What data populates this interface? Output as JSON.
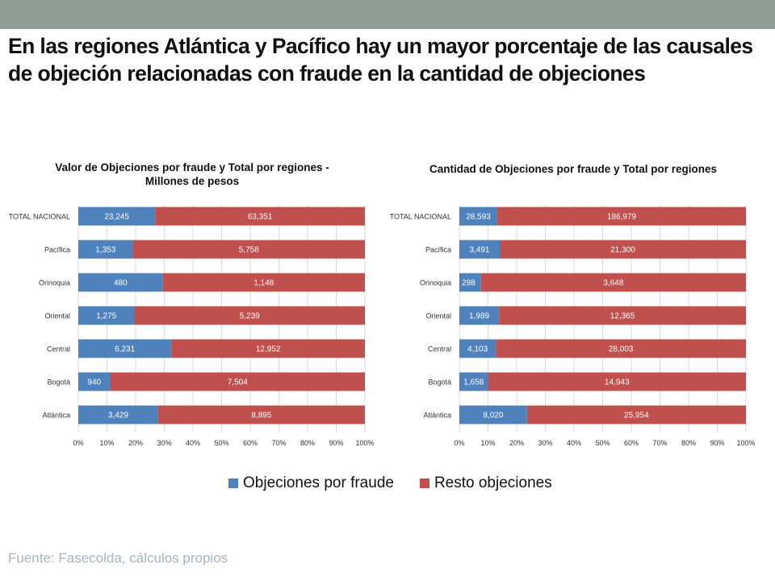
{
  "headline": "En las regiones Atlántica y Pacífico hay un mayor porcentaje de las causales de objeción relacionadas con fraude  en la cantidad de objeciones",
  "source": "Fuente: Fasecolda, cálculos propios",
  "colors": {
    "fraude": "#4f81bd",
    "resto": "#c0504d",
    "band": "#8f9e94"
  },
  "legend": [
    {
      "label": "Objeciones por fraude",
      "color": "#4f81bd"
    },
    {
      "label": "Resto objeciones",
      "color": "#c0504d"
    }
  ],
  "chart_data": [
    {
      "type": "bar",
      "orientation": "horizontal",
      "stacked": "percent",
      "title": "Valor de Objeciones por fraude y Total  por regiones - Millones de pesos",
      "categories": [
        "TOTAL NACIONAL",
        "Pacífica",
        "Orinoquia",
        "Oriental",
        "Central",
        "Bogotá",
        "Atlántica"
      ],
      "series": [
        {
          "name": "Objeciones por fraude",
          "values": [
            23245,
            1353,
            480,
            1275,
            6231,
            940,
            3429
          ],
          "labels": [
            "23,245",
            "1,353",
            "480",
            "1,275",
            "6,231",
            "940",
            "3,429"
          ]
        },
        {
          "name": "Resto objeciones",
          "values": [
            63351,
            5758,
            1148,
            5239,
            12952,
            7504,
            8895
          ],
          "labels": [
            "63,351",
            "5,758",
            "1,148",
            "5,239",
            "12,952",
            "7,504",
            "8,895"
          ]
        }
      ],
      "x_ticks": [
        "0%",
        "10%",
        "20%",
        "30%",
        "40%",
        "50%",
        "60%",
        "70%",
        "80%",
        "90%",
        "100%"
      ],
      "xlim": [
        0,
        100
      ],
      "grid": true,
      "legend": "bottom"
    },
    {
      "type": "bar",
      "orientation": "horizontal",
      "stacked": "percent",
      "title": "Cantidad  de Objeciones por fraude y Total por regiones",
      "categories": [
        "TOTAL NACIONAL",
        "Pacífica",
        "Orinoquia",
        "Oriental",
        "Central",
        "Bogotá",
        "Atlántica"
      ],
      "series": [
        {
          "name": "Objeciones por fraude",
          "values": [
            28593,
            3491,
            298,
            1989,
            4103,
            1658,
            8020
          ],
          "labels": [
            "28,593",
            "3,491",
            "298",
            "1,989",
            "4,103",
            "1,658",
            "8,020"
          ]
        },
        {
          "name": "Resto objeciones",
          "values": [
            186979,
            21300,
            3648,
            12365,
            28003,
            14943,
            25954
          ],
          "labels": [
            "186,979",
            "21,300",
            "3,648",
            "12,365",
            "28,003",
            "14,943",
            "25,954"
          ]
        }
      ],
      "x_ticks": [
        "0%",
        "10%",
        "20%",
        "30%",
        "40%",
        "50%",
        "60%",
        "70%",
        "80%",
        "90%",
        "100%"
      ],
      "xlim": [
        0,
        100
      ],
      "grid": true,
      "legend": "bottom"
    }
  ]
}
